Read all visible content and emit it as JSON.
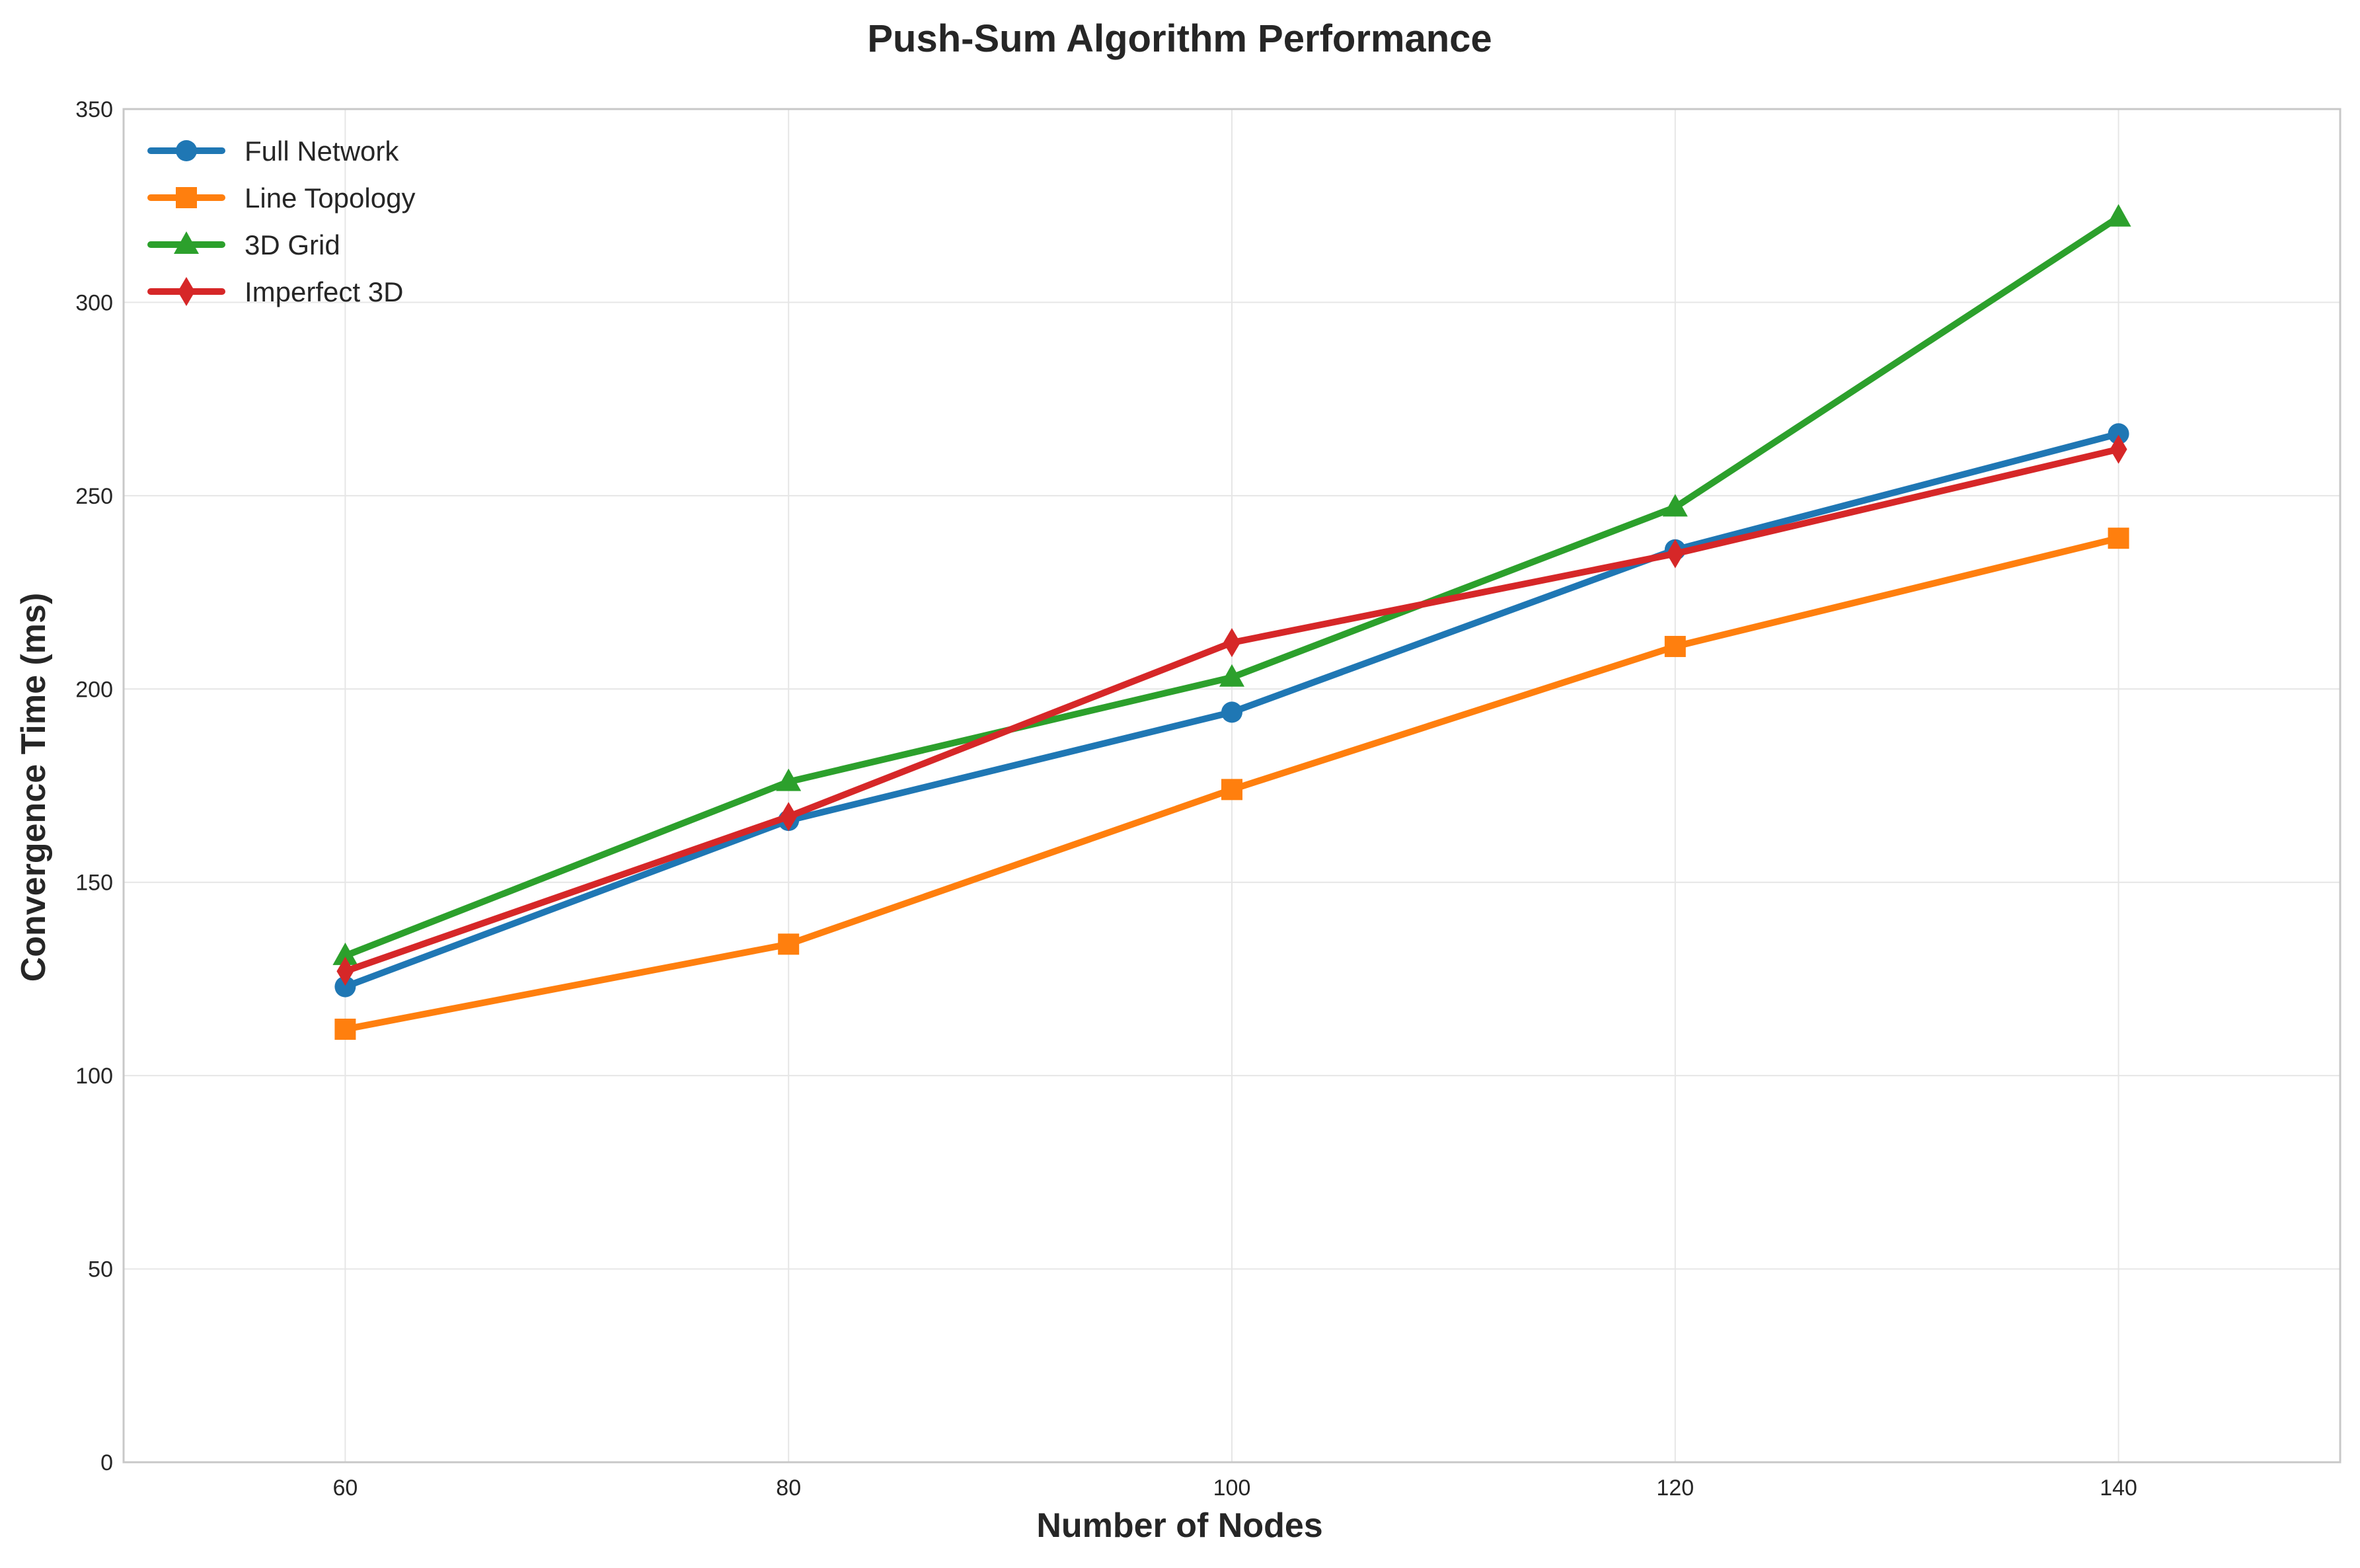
{
  "chart_data": {
    "type": "line",
    "title": "Push-Sum Algorithm Performance",
    "xlabel": "Number of Nodes",
    "ylabel": "Convergence Time (ms)",
    "x": [
      60,
      80,
      100,
      120,
      140
    ],
    "xlim": [
      50,
      150
    ],
    "ylim": [
      0,
      350
    ],
    "xticks": [
      60,
      80,
      100,
      120,
      140
    ],
    "xtick_labels": [
      "60",
      "80",
      "100",
      "120",
      "140"
    ],
    "yticks": [
      0,
      50,
      100,
      150,
      200,
      250,
      300,
      350
    ],
    "ytick_labels": [
      "0",
      "50",
      "100",
      "150",
      "200",
      "250",
      "300",
      "350"
    ],
    "grid": true,
    "legend_position": "top-left",
    "series": [
      {
        "name": "Full Network",
        "color": "#1f77b4",
        "marker": "circle",
        "values": [
          123,
          166,
          194,
          236,
          266
        ]
      },
      {
        "name": "Line Topology",
        "color": "#ff7f0e",
        "marker": "square",
        "values": [
          112,
          134,
          174,
          211,
          239
        ]
      },
      {
        "name": "3D Grid",
        "color": "#2ca02c",
        "marker": "triangle",
        "values": [
          131,
          176,
          203,
          247,
          322
        ]
      },
      {
        "name": "Imperfect 3D",
        "color": "#d62728",
        "marker": "thin-diamond",
        "values": [
          127,
          167,
          212,
          235,
          262
        ]
      }
    ]
  }
}
